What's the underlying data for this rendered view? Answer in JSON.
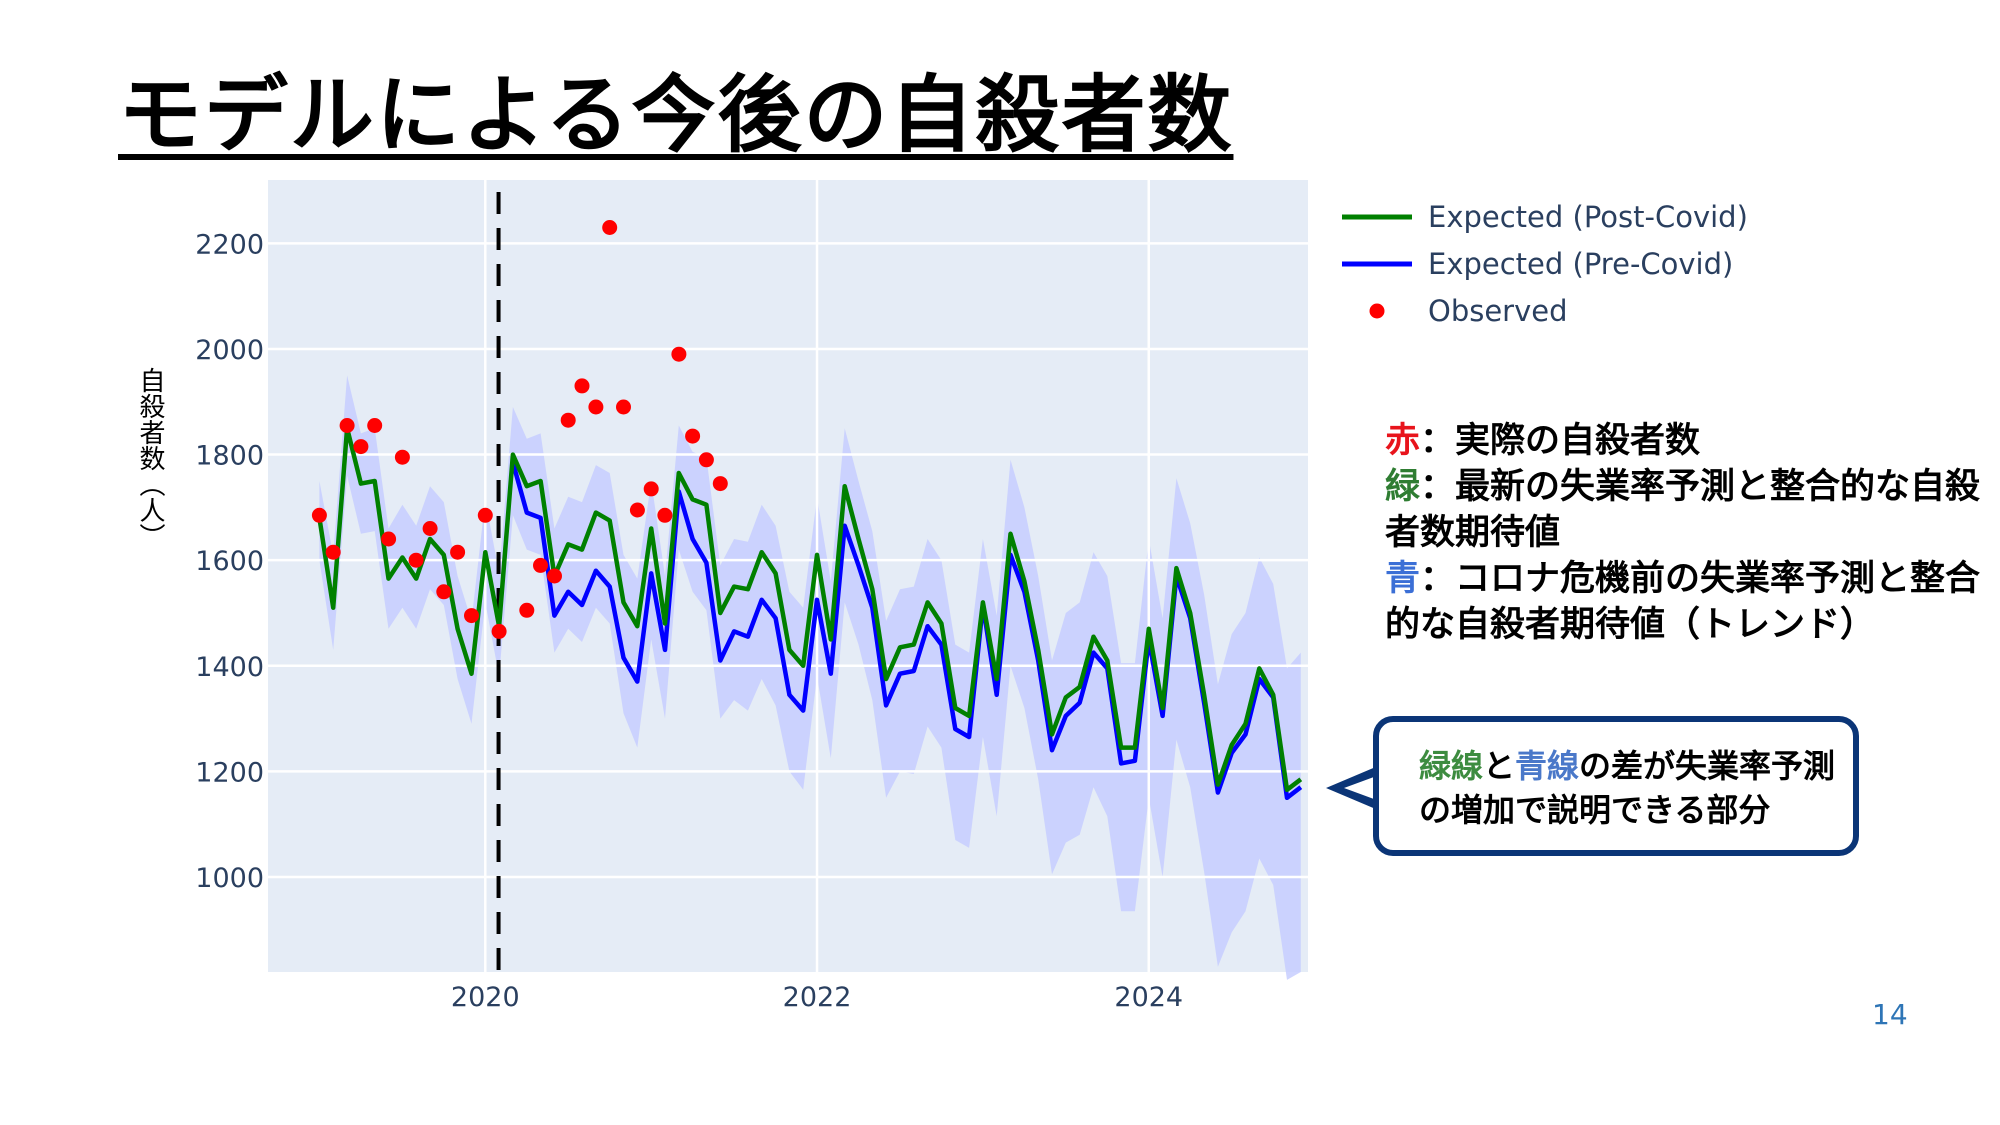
{
  "title": "モデルによる今後の自殺者数",
  "page_number": "14",
  "notes": [
    {
      "key": "赤",
      "sep": "：",
      "text": "実際の自殺者数",
      "color": "#e8141c"
    },
    {
      "key": "緑",
      "sep": "：",
      "text": "最新の失業率予測と整合的な自殺者数期待値",
      "color": "#2f7d32"
    },
    {
      "key": "青",
      "sep": "：",
      "text": "コロナ危機前の失業率予測と整合的な自殺者期待値（トレンド）",
      "color": "#3b6fd6"
    }
  ],
  "callout": {
    "green_word": "緑線",
    "and": "と",
    "blue_word": "青線",
    "rest": "の差が失業率予測の増加で説明できる部分"
  },
  "chart_data": {
    "type": "line",
    "title": "",
    "xlabel": "",
    "ylabel": "自殺者数（人）",
    "x_ticks": [
      "2020",
      "2022",
      "2024"
    ],
    "y_ticks": [
      "1000",
      "1200",
      "1400",
      "1600",
      "1800",
      "2000",
      "2200"
    ],
    "xlim": [
      2018.69,
      2024.96
    ],
    "ylim": [
      820,
      2320
    ],
    "x_start": 2019.0,
    "x_step": 0.0833333,
    "vline": {
      "x": 2020.08,
      "style": "dashed",
      "color": "#000000"
    },
    "legend_position": "top-right",
    "colors": {
      "post": "#008000",
      "pre": "#0000ff",
      "obs": "#ff0000",
      "band": "#c7ceff",
      "plot_bg": "#e5ecf6"
    },
    "series": [
      {
        "name": "Expected (Post-Covid)",
        "kind": "line",
        "color": "#008000",
        "values": [
          1680,
          1510,
          1850,
          1745,
          1750,
          1565,
          1605,
          1565,
          1640,
          1610,
          1470,
          1385,
          1615,
          1475,
          1800,
          1740,
          1750,
          1570,
          1630,
          1620,
          1690,
          1675,
          1520,
          1475,
          1660,
          1480,
          1765,
          1715,
          1705,
          1500,
          1550,
          1545,
          1615,
          1575,
          1430,
          1400,
          1610,
          1450,
          1740,
          1640,
          1545,
          1375,
          1435,
          1440,
          1520,
          1480,
          1320,
          1305,
          1520,
          1375,
          1650,
          1560,
          1430,
          1270,
          1340,
          1360,
          1455,
          1410,
          1245,
          1245,
          1470,
          1320,
          1585,
          1500,
          1345,
          1175,
          1250,
          1290,
          1395,
          1345,
          1165,
          1185
        ]
      },
      {
        "name": "Expected (Pre-Covid)",
        "kind": "line",
        "color": "#0000ff",
        "values": [
          null,
          null,
          null,
          null,
          null,
          null,
          null,
          null,
          null,
          null,
          null,
          null,
          null,
          null,
          1785,
          1690,
          1680,
          1495,
          1540,
          1515,
          1580,
          1550,
          1415,
          1370,
          1575,
          1430,
          1730,
          1640,
          1595,
          1410,
          1465,
          1455,
          1525,
          1490,
          1345,
          1315,
          1525,
          1385,
          1665,
          1590,
          1510,
          1325,
          1385,
          1390,
          1475,
          1440,
          1280,
          1265,
          1515,
          1345,
          1610,
          1540,
          1410,
          1240,
          1305,
          1330,
          1425,
          1395,
          1215,
          1220,
          1450,
          1305,
          1570,
          1490,
          1330,
          1160,
          1235,
          1270,
          1375,
          1340,
          1150,
          1170
        ]
      },
      {
        "name": "Observed",
        "kind": "scatter",
        "color": "#ff0000",
        "points": [
          [
            2019.0,
            1685
          ],
          [
            2019.083,
            1615
          ],
          [
            2019.167,
            1855
          ],
          [
            2019.25,
            1815
          ],
          [
            2019.333,
            1855
          ],
          [
            2019.417,
            1640
          ],
          [
            2019.5,
            1795
          ],
          [
            2019.583,
            1600
          ],
          [
            2019.667,
            1660
          ],
          [
            2019.75,
            1540
          ],
          [
            2019.833,
            1615
          ],
          [
            2019.917,
            1495
          ],
          [
            2020.0,
            1685
          ],
          [
            2020.083,
            1465
          ],
          [
            2020.25,
            1505
          ],
          [
            2020.333,
            1590
          ],
          [
            2020.417,
            1570
          ],
          [
            2020.5,
            1865
          ],
          [
            2020.583,
            1930
          ],
          [
            2020.667,
            1890
          ],
          [
            2020.75,
            2230
          ],
          [
            2020.833,
            1890
          ],
          [
            2020.917,
            1695
          ],
          [
            2021.0,
            1735
          ],
          [
            2021.083,
            1685
          ],
          [
            2021.167,
            1990
          ],
          [
            2021.25,
            1835
          ],
          [
            2021.333,
            1790
          ],
          [
            2021.417,
            1745
          ]
        ]
      },
      {
        "name": "band",
        "kind": "band",
        "color": "#c7ceff",
        "upper": [
          1750,
          1610,
          1950,
          1840,
          1850,
          1660,
          1705,
          1665,
          1740,
          1710,
          1570,
          1485,
          1715,
          1575,
          1890,
          1830,
          1840,
          1660,
          1720,
          1710,
          1780,
          1765,
          1610,
          1565,
          1750,
          1570,
          1855,
          1805,
          1795,
          1590,
          1640,
          1635,
          1705,
          1665,
          1540,
          1510,
          1720,
          1560,
          1850,
          1750,
          1655,
          1485,
          1545,
          1550,
          1640,
          1600,
          1440,
          1425,
          1640,
          1495,
          1790,
          1700,
          1570,
          1410,
          1500,
          1520,
          1615,
          1570,
          1405,
          1405,
          1640,
          1490,
          1755,
          1670,
          1535,
          1365,
          1460,
          1500,
          1605,
          1555,
          1395,
          1425
        ],
        "lower": [
          1600,
          1430,
          1760,
          1650,
          1655,
          1470,
          1510,
          1470,
          1545,
          1515,
          1375,
          1290,
          1520,
          1380,
          1685,
          1620,
          1610,
          1425,
          1470,
          1445,
          1510,
          1480,
          1310,
          1245,
          1450,
          1300,
          1620,
          1540,
          1505,
          1300,
          1335,
          1315,
          1375,
          1325,
          1200,
          1165,
          1380,
          1225,
          1520,
          1440,
          1335,
          1150,
          1200,
          1195,
          1285,
          1245,
          1070,
          1055,
          1265,
          1115,
          1400,
          1320,
          1185,
          1005,
          1065,
          1080,
          1170,
          1115,
          935,
          935,
          1150,
          1000,
          1260,
          1170,
          1010,
          830,
          895,
          935,
          1035,
          985,
          805,
          820
        ]
      }
    ]
  }
}
